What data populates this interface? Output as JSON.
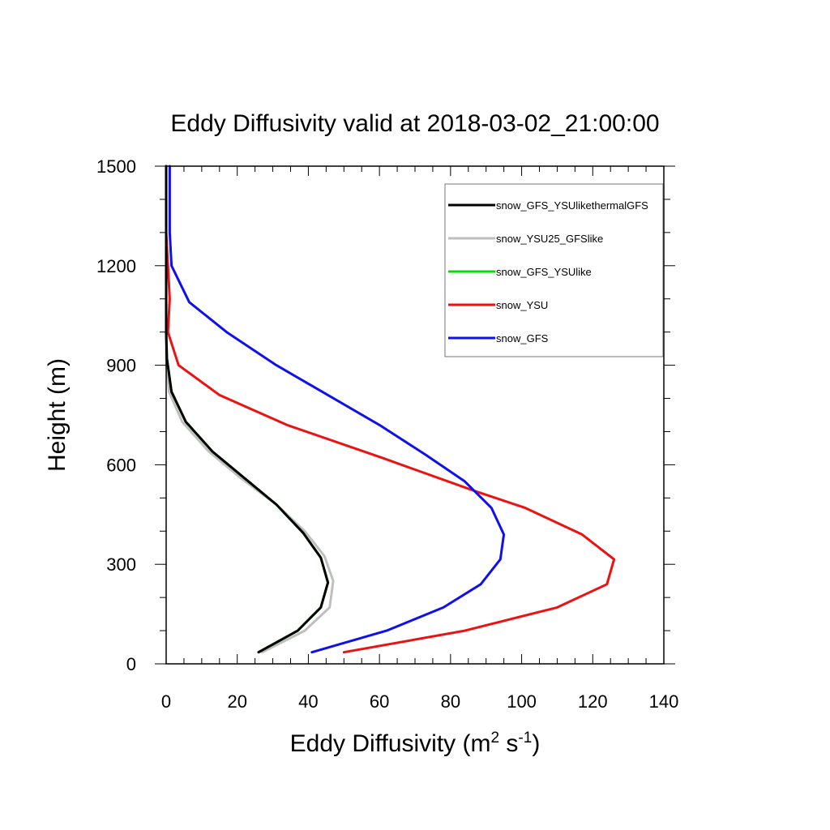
{
  "chart_data": {
    "type": "line",
    "title": "Eddy Diffusivity valid at 2018-03-02_21:00:00",
    "xlabel": {
      "base": "Eddy Diffusivity (m",
      "sup1": "2",
      "mid": " s",
      "sup2": "-1",
      "end": ")"
    },
    "ylabel": "Height (m)",
    "xlim": [
      0,
      140
    ],
    "ylim": [
      0,
      1500
    ],
    "xticks": [
      0,
      20,
      40,
      60,
      80,
      100,
      120,
      140
    ],
    "yticks": [
      0,
      300,
      600,
      900,
      1200,
      1500
    ],
    "legend_position": "top-right",
    "grid": false,
    "series": [
      {
        "name": "snow_GFS_YSUlikethermalGFS",
        "color": "#000000",
        "points": [
          [
            26,
            35
          ],
          [
            37,
            100
          ],
          [
            43.5,
            170
          ],
          [
            45.5,
            245
          ],
          [
            43.5,
            320
          ],
          [
            38.5,
            395
          ],
          [
            31,
            480
          ],
          [
            22,
            560
          ],
          [
            13,
            640
          ],
          [
            5.5,
            730
          ],
          [
            1.5,
            820
          ],
          [
            0.2,
            920
          ],
          [
            0,
            1000
          ],
          [
            0,
            1100
          ],
          [
            0,
            1200
          ],
          [
            0,
            1300
          ],
          [
            0,
            1400
          ],
          [
            0,
            1500
          ]
        ]
      },
      {
        "name": "snow_YSU25_GFSlike",
        "color": "#bfbfbf",
        "points": [
          [
            27,
            35
          ],
          [
            39,
            100
          ],
          [
            46,
            170
          ],
          [
            47,
            250
          ],
          [
            44.5,
            325
          ],
          [
            39,
            400
          ],
          [
            31,
            480
          ],
          [
            21,
            560
          ],
          [
            12,
            640
          ],
          [
            4.5,
            730
          ],
          [
            0.8,
            820
          ],
          [
            0,
            920
          ],
          [
            0,
            1000
          ],
          [
            0,
            1100
          ],
          [
            0,
            1200
          ],
          [
            0,
            1300
          ],
          [
            0,
            1400
          ],
          [
            0,
            1500
          ]
        ]
      },
      {
        "name": "snow_GFS_YSUlike",
        "color": "#00e000",
        "points": [
          [
            26,
            35
          ],
          [
            37,
            100
          ],
          [
            43.5,
            170
          ],
          [
            45.5,
            245
          ],
          [
            43.5,
            320
          ],
          [
            38.5,
            395
          ],
          [
            31,
            480
          ],
          [
            22,
            560
          ],
          [
            13,
            640
          ],
          [
            5.5,
            730
          ],
          [
            1.5,
            820
          ],
          [
            0.2,
            920
          ],
          [
            0,
            1000
          ],
          [
            0,
            1100
          ],
          [
            0,
            1200
          ],
          [
            0,
            1300
          ],
          [
            0,
            1400
          ],
          [
            0,
            1500
          ]
        ]
      },
      {
        "name": "snow_YSU",
        "color": "#ee1111",
        "points": [
          [
            50,
            35
          ],
          [
            84,
            100
          ],
          [
            110,
            170
          ],
          [
            124,
            240
          ],
          [
            126,
            315
          ],
          [
            117,
            390
          ],
          [
            101,
            470
          ],
          [
            87,
            520
          ],
          [
            61,
            620
          ],
          [
            34,
            720
          ],
          [
            15,
            810
          ],
          [
            3.5,
            900
          ],
          [
            0.5,
            1000
          ],
          [
            1,
            1100
          ],
          [
            0.5,
            1200
          ],
          [
            0,
            1300
          ],
          [
            0,
            1400
          ],
          [
            0,
            1500
          ]
        ]
      },
      {
        "name": "snow_GFS",
        "color": "#1010ee",
        "points": [
          [
            41,
            35
          ],
          [
            62,
            100
          ],
          [
            78,
            170
          ],
          [
            88.5,
            240
          ],
          [
            94,
            315
          ],
          [
            95,
            390
          ],
          [
            91.5,
            470
          ],
          [
            84,
            550
          ],
          [
            73,
            630
          ],
          [
            60,
            720
          ],
          [
            31,
            900
          ],
          [
            17,
            1000
          ],
          [
            6.5,
            1090
          ],
          [
            1.5,
            1200
          ],
          [
            1,
            1300
          ],
          [
            1,
            1400
          ],
          [
            1,
            1500
          ]
        ]
      }
    ]
  }
}
